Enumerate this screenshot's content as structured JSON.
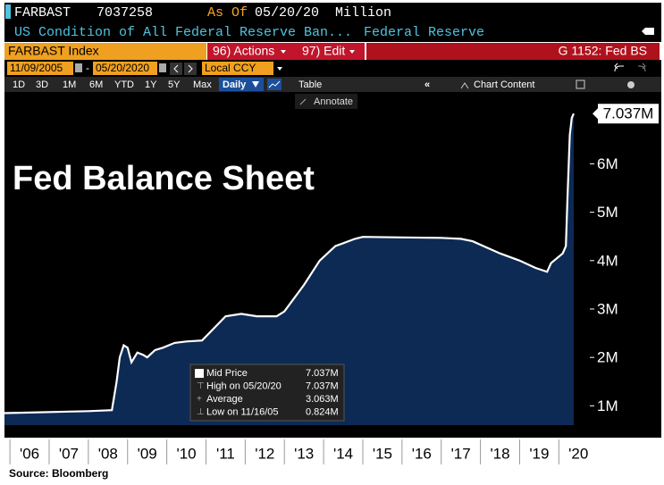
{
  "header": {
    "ticker": "FARBAST",
    "value": "7037258",
    "as_of_label": "As Of",
    "as_of_date": "05/20/20",
    "units": "Million",
    "description": "US Condition of All Federal Reserve Ban...",
    "source_name": "Federal Reserve",
    "security": "FARBAST Index",
    "actions": "96) Actions",
    "edit": "97) Edit",
    "function": "G 1152: Fed BS"
  },
  "controls": {
    "start_date": "11/09/2005",
    "end_date": "05/20/2020",
    "currency": "Local CCY",
    "ranges": [
      "1D",
      "3D",
      "1M",
      "6M",
      "YTD",
      "1Y",
      "5Y",
      "Max"
    ],
    "frequency": "Daily",
    "table": "Table",
    "chart_content": "Chart Content",
    "annotate": "Annotate"
  },
  "chart_data": {
    "type": "area",
    "title": "Fed Balance Sheet",
    "x": [
      2005.86,
      2006.5,
      2007.5,
      2008.0,
      2008.6,
      2008.72,
      2008.8,
      2008.9,
      2009.0,
      2009.1,
      2009.25,
      2009.4,
      2009.5,
      2009.7,
      2009.9,
      2010.2,
      2010.5,
      2010.9,
      2011.2,
      2011.5,
      2011.9,
      2012.3,
      2012.8,
      2013.0,
      2013.5,
      2013.9,
      2014.3,
      2014.8,
      2015.0,
      2016.0,
      2017.0,
      2017.5,
      2017.8,
      2018.5,
      2019.0,
      2019.4,
      2019.7,
      2019.8,
      2020.1,
      2020.18,
      2020.22,
      2020.28,
      2020.33,
      2020.38
    ],
    "series": [
      {
        "name": "Mid Price",
        "color": "#ffffff",
        "fill": "#0d2a55",
        "values": [
          0.85,
          0.86,
          0.88,
          0.89,
          0.91,
          1.5,
          2.0,
          2.25,
          2.2,
          1.9,
          2.1,
          2.05,
          2.0,
          2.15,
          2.2,
          2.3,
          2.33,
          2.35,
          2.6,
          2.85,
          2.9,
          2.85,
          2.85,
          2.95,
          3.5,
          4.0,
          4.3,
          4.45,
          4.49,
          4.48,
          4.47,
          4.45,
          4.4,
          4.15,
          4.0,
          3.85,
          3.77,
          3.95,
          4.15,
          4.3,
          5.3,
          6.6,
          6.95,
          7.037
        ]
      }
    ],
    "last_label": "7.037M",
    "xlim": [
      2005.86,
      2020.38
    ],
    "xticks": [
      {
        "value": 2006.5,
        "label": "'06"
      },
      {
        "value": 2007.5,
        "label": "'07"
      },
      {
        "value": 2008.5,
        "label": "'08"
      },
      {
        "value": 2009.5,
        "label": "'09"
      },
      {
        "value": 2010.5,
        "label": "'10"
      },
      {
        "value": 2011.5,
        "label": "'11"
      },
      {
        "value": 2012.5,
        "label": "'12"
      },
      {
        "value": 2013.5,
        "label": "'13"
      },
      {
        "value": 2014.5,
        "label": "'14"
      },
      {
        "value": 2015.5,
        "label": "'15"
      },
      {
        "value": 2016.5,
        "label": "'16"
      },
      {
        "value": 2017.5,
        "label": "'17"
      },
      {
        "value": 2018.5,
        "label": "'18"
      },
      {
        "value": 2019.5,
        "label": "'19"
      },
      {
        "value": 2020.5,
        "label": "'20"
      }
    ],
    "ylim": [
      0.6,
      7.3
    ],
    "yticks": [
      {
        "value": 1,
        "label": "1M"
      },
      {
        "value": 2,
        "label": "2M"
      },
      {
        "value": 3,
        "label": "3M"
      },
      {
        "value": 4,
        "label": "4M"
      },
      {
        "value": 5,
        "label": "5M"
      },
      {
        "value": 6,
        "label": "6M"
      }
    ],
    "legend_stats": [
      {
        "name": "Mid Price",
        "value_label": "7.037M"
      },
      {
        "name": "High on 05/20/20",
        "value_label": "7.037M"
      },
      {
        "name": "Average",
        "value_label": "3.063M"
      },
      {
        "name": "Low on 11/16/05",
        "value_label": "0.824M"
      }
    ],
    "source": "Source: Bloomberg"
  }
}
